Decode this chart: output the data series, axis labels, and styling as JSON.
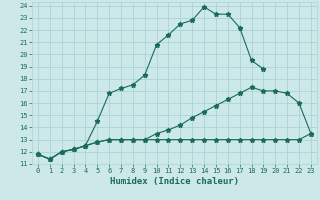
{
  "xlabel": "Humidex (Indice chaleur)",
  "bg_color": "#cce8e8",
  "grid_color": "#aad4d4",
  "line_color": "#1a6b5a",
  "xlim": [
    -0.5,
    23.5
  ],
  "ylim": [
    11,
    24.3
  ],
  "xticks": [
    0,
    1,
    2,
    3,
    4,
    5,
    6,
    7,
    8,
    9,
    10,
    11,
    12,
    13,
    14,
    15,
    16,
    17,
    18,
    19,
    20,
    21,
    22,
    23
  ],
  "yticks": [
    11,
    12,
    13,
    14,
    15,
    16,
    17,
    18,
    19,
    20,
    21,
    22,
    23,
    24
  ],
  "curve1_x": [
    0,
    1,
    2,
    3,
    4,
    5,
    6,
    7,
    8,
    9,
    10,
    11,
    12,
    13,
    14,
    15,
    16,
    17,
    18,
    19,
    20,
    21,
    22,
    23
  ],
  "curve1_y": [
    11.8,
    11.4,
    12.0,
    12.2,
    12.5,
    14.5,
    16.8,
    17.2,
    17.5,
    18.3,
    20.8,
    21.6,
    22.5,
    22.8,
    23.9,
    23.3,
    23.3,
    22.2,
    19.5,
    18.8,
    null,
    null,
    null,
    null
  ],
  "curve2_x": [
    0,
    1,
    2,
    3,
    4,
    5,
    6,
    7,
    8,
    9,
    10,
    11,
    12,
    13,
    14,
    15,
    16,
    17,
    18,
    19,
    20,
    21,
    22,
    23
  ],
  "curve2_y": [
    11.8,
    11.4,
    12.0,
    12.2,
    12.5,
    12.8,
    13.0,
    13.0,
    13.0,
    13.0,
    13.5,
    13.8,
    14.2,
    14.8,
    15.3,
    15.8,
    16.3,
    16.8,
    17.3,
    17.0,
    17.0,
    16.8,
    16.0,
    13.5
  ],
  "curve3_x": [
    0,
    1,
    2,
    3,
    4,
    5,
    6,
    7,
    8,
    9,
    10,
    11,
    12,
    13,
    14,
    15,
    16,
    17,
    18,
    19,
    20,
    21,
    22,
    23
  ],
  "curve3_y": [
    11.8,
    11.4,
    12.0,
    12.2,
    12.5,
    12.8,
    13.0,
    13.0,
    13.0,
    13.0,
    13.0,
    13.0,
    13.0,
    13.0,
    13.0,
    13.0,
    13.0,
    13.0,
    13.0,
    13.0,
    13.0,
    13.0,
    13.0,
    13.5
  ]
}
